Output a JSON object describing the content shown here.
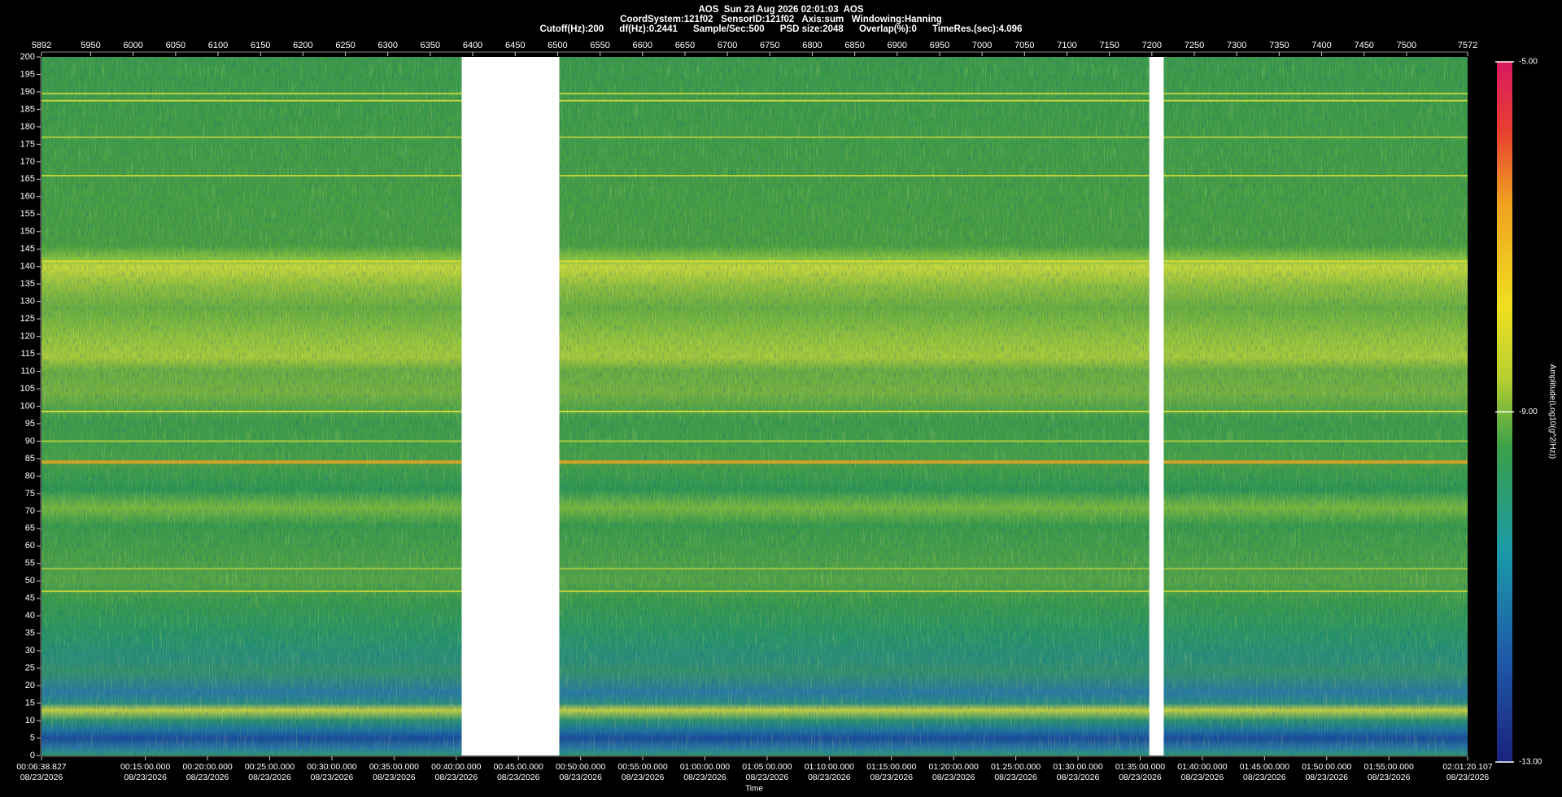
{
  "chart_data": {
    "type": "spectrogram",
    "title": "AOS  Sun 23 Aug 2026 02:01:03  AOS",
    "subtitle": "CoordSystem:121f02   SensorID:121f02   Axis:sum   Windowing:Hanning",
    "settings_text": "Cutoff(Hz):200      df(Hz):0.2441      Sample/Sec:500      PSD size:2048      Overlap(%):0      TimeRes.(sec):4.096",
    "x_label": "Time",
    "colorbar_label": "Amplitude(Log10(g^2/Hz))",
    "xlim": [
      5892,
      7572
    ],
    "xticks": [
      5892,
      5950,
      6000,
      6050,
      6100,
      6150,
      6200,
      6250,
      6300,
      6350,
      6400,
      6450,
      6500,
      6550,
      6600,
      6650,
      6700,
      6750,
      6800,
      6850,
      6900,
      6950,
      7000,
      7050,
      7100,
      7150,
      7200,
      7250,
      7300,
      7350,
      7400,
      7450,
      7500,
      7572
    ],
    "ylim": [
      0,
      200
    ],
    "yticks": [
      0,
      5,
      10,
      15,
      20,
      25,
      30,
      35,
      40,
      45,
      50,
      55,
      60,
      65,
      70,
      75,
      80,
      85,
      90,
      95,
      100,
      105,
      110,
      115,
      120,
      125,
      130,
      135,
      140,
      145,
      150,
      155,
      160,
      165,
      170,
      175,
      180,
      185,
      190,
      195,
      200
    ],
    "timelim": [
      398.827,
      7280.107
    ],
    "time_ticks": [
      {
        "value": 398.827,
        "label": "00:06:38.827"
      },
      {
        "value": 900,
        "label": "00:15:00.000"
      },
      {
        "value": 1200,
        "label": "00:20:00.000"
      },
      {
        "value": 1500,
        "label": "00:25:00.000"
      },
      {
        "value": 1800,
        "label": "00:30:00.000"
      },
      {
        "value": 2100,
        "label": "00:35:00.000"
      },
      {
        "value": 2400,
        "label": "00:40:00.000"
      },
      {
        "value": 2700,
        "label": "00:45:00.000"
      },
      {
        "value": 3000,
        "label": "00:50:00.000"
      },
      {
        "value": 3300,
        "label": "00:55:00.000"
      },
      {
        "value": 3600,
        "label": "01:00:00.000"
      },
      {
        "value": 3900,
        "label": "01:05:00.000"
      },
      {
        "value": 4200,
        "label": "01:10:00.000"
      },
      {
        "value": 4500,
        "label": "01:15:00.000"
      },
      {
        "value": 4800,
        "label": "01:20:00.000"
      },
      {
        "value": 5100,
        "label": "01:25:00.000"
      },
      {
        "value": 5400,
        "label": "01:30:00.000"
      },
      {
        "value": 5700,
        "label": "01:35:00.000"
      },
      {
        "value": 6000,
        "label": "01:40:00.000"
      },
      {
        "value": 6300,
        "label": "01:45:00.000"
      },
      {
        "value": 6600,
        "label": "01:50:00.000"
      },
      {
        "value": 6900,
        "label": "01:55:00.000"
      },
      {
        "value": 7280.107,
        "label": "02:01:20.107"
      }
    ],
    "time_tick_dates": [
      "08/23/2026",
      "08/23/2026",
      "08/23/2026",
      "08/23/2026",
      "08/23/2026",
      "08/23/2026",
      "08/23/2026",
      "08/23/2026",
      "08/23/2026",
      "08/23/2026",
      "08/23/2026",
      "08/23/2026",
      "08/23/2026",
      "08/23/2026",
      "08/23/2026",
      "08/23/2026",
      "08/23/2026",
      "08/23/2026",
      "08/23/2026",
      "08/23/2026",
      "08/23/2026",
      "08/23/2026",
      "08/23/2026"
    ],
    "clim": [
      -13,
      -5
    ],
    "cticks": [
      {
        "value": -5,
        "label": "-5.00"
      },
      {
        "value": -9,
        "label": "-9.00"
      },
      {
        "value": -13,
        "label": "-13.00"
      }
    ],
    "gaps": [
      [
        6387,
        6502
      ],
      [
        7197,
        7214
      ]
    ],
    "spectral_lines": [
      {
        "freq": 189.5,
        "color": "#c6d63e"
      },
      {
        "freq": 187.5,
        "color": "#d2dc3c"
      },
      {
        "freq": 177,
        "color": "#b8d040"
      },
      {
        "freq": 166,
        "color": "#c8d83c"
      },
      {
        "freq": 141.5,
        "color": "#d6de3a"
      },
      {
        "freq": 98.5,
        "color": "#dce03a"
      },
      {
        "freq": 90,
        "color": "#b8d040"
      },
      {
        "freq": 84,
        "color": "#e0a424"
      },
      {
        "freq": 53.5,
        "color": "#a8c842"
      },
      {
        "freq": 47,
        "color": "#c8d83c"
      }
    ]
  }
}
